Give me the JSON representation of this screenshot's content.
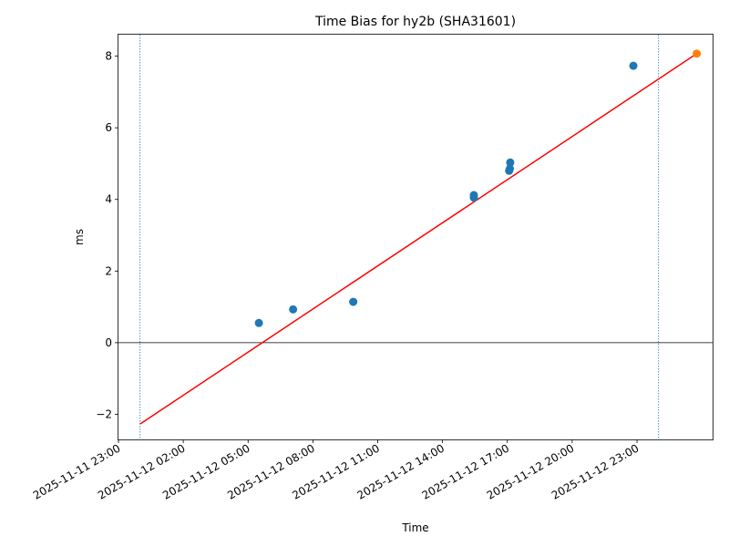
{
  "chart_data": {
    "type": "scatter",
    "title": "Time Bias for hy2b (SHA31601)",
    "xlabel": "Time",
    "ylabel": "ms",
    "xlim": [
      "2025-11-11 23:00",
      "2025-11-13 02:30"
    ],
    "ylim": [
      -2.7,
      8.6
    ],
    "x_ticks": [
      "2025-11-11 23:00",
      "2025-11-12 02:00",
      "2025-11-12 05:00",
      "2025-11-12 08:00",
      "2025-11-12 11:00",
      "2025-11-12 14:00",
      "2025-11-12 17:00",
      "2025-11-12 20:00",
      "2025-11-12 23:00"
    ],
    "y_ticks": [
      -2,
      0,
      2,
      4,
      6,
      8
    ],
    "grid": false,
    "colors": {
      "observed": "#1f77b4",
      "predicted": "#ff7f0e",
      "fit": "#ff0000",
      "window": "#1f77b4",
      "zero": "#000000"
    },
    "series": [
      {
        "points": [
          {
            "x": "2025-11-12 05:30",
            "y": 0.55
          },
          {
            "x": "2025-11-12 07:05",
            "y": 0.93
          },
          {
            "x": "2025-11-12 09:52",
            "y": 1.14
          },
          {
            "x": "2025-11-12 15:27",
            "y": 4.05
          },
          {
            "x": "2025-11-12 15:27",
            "y": 4.12
          },
          {
            "x": "2025-11-12 17:05",
            "y": 4.8
          },
          {
            "x": "2025-11-12 17:07",
            "y": 4.86
          },
          {
            "x": "2025-11-12 17:08",
            "y": 5.03
          },
          {
            "x": "2025-11-12 22:50",
            "y": 7.73
          }
        ]
      },
      {
        "points": [
          {
            "x": "2025-11-13 01:46",
            "y": 8.07
          }
        ]
      }
    ],
    "fit_line": [
      {
        "x": "2025-11-12 00:00",
        "y": -2.27
      },
      {
        "x": "2025-11-13 01:46",
        "y": 8.07
      }
    ],
    "vertical_lines": [
      "2025-11-12 00:00",
      "2025-11-13 00:00"
    ],
    "horizontal_lines": [
      0
    ]
  }
}
